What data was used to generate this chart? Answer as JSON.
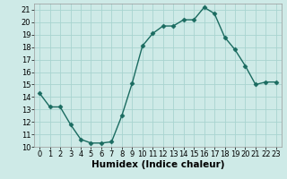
{
  "x": [
    0,
    1,
    2,
    3,
    4,
    5,
    6,
    7,
    8,
    9,
    10,
    11,
    12,
    13,
    14,
    15,
    16,
    17,
    18,
    19,
    20,
    21,
    22,
    23
  ],
  "y": [
    14.3,
    13.2,
    13.2,
    11.8,
    10.6,
    10.3,
    10.3,
    10.4,
    12.5,
    15.1,
    18.1,
    19.1,
    19.7,
    19.7,
    20.2,
    20.2,
    21.2,
    20.7,
    18.8,
    17.8,
    16.5,
    15.0,
    15.2,
    15.2
  ],
  "line_color": "#1a6b60",
  "marker": "D",
  "marker_size": 2.5,
  "line_width": 1.0,
  "bg_color": "#ceeae7",
  "grid_color": "#a8d4d0",
  "xlabel": "Humidex (Indice chaleur)",
  "xlim": [
    -0.5,
    23.5
  ],
  "ylim": [
    10,
    21.5
  ],
  "yticks": [
    10,
    11,
    12,
    13,
    14,
    15,
    16,
    17,
    18,
    19,
    20,
    21
  ],
  "xticks": [
    0,
    1,
    2,
    3,
    4,
    5,
    6,
    7,
    8,
    9,
    10,
    11,
    12,
    13,
    14,
    15,
    16,
    17,
    18,
    19,
    20,
    21,
    22,
    23
  ],
  "xlabel_fontsize": 7.5,
  "tick_fontsize": 6.0
}
